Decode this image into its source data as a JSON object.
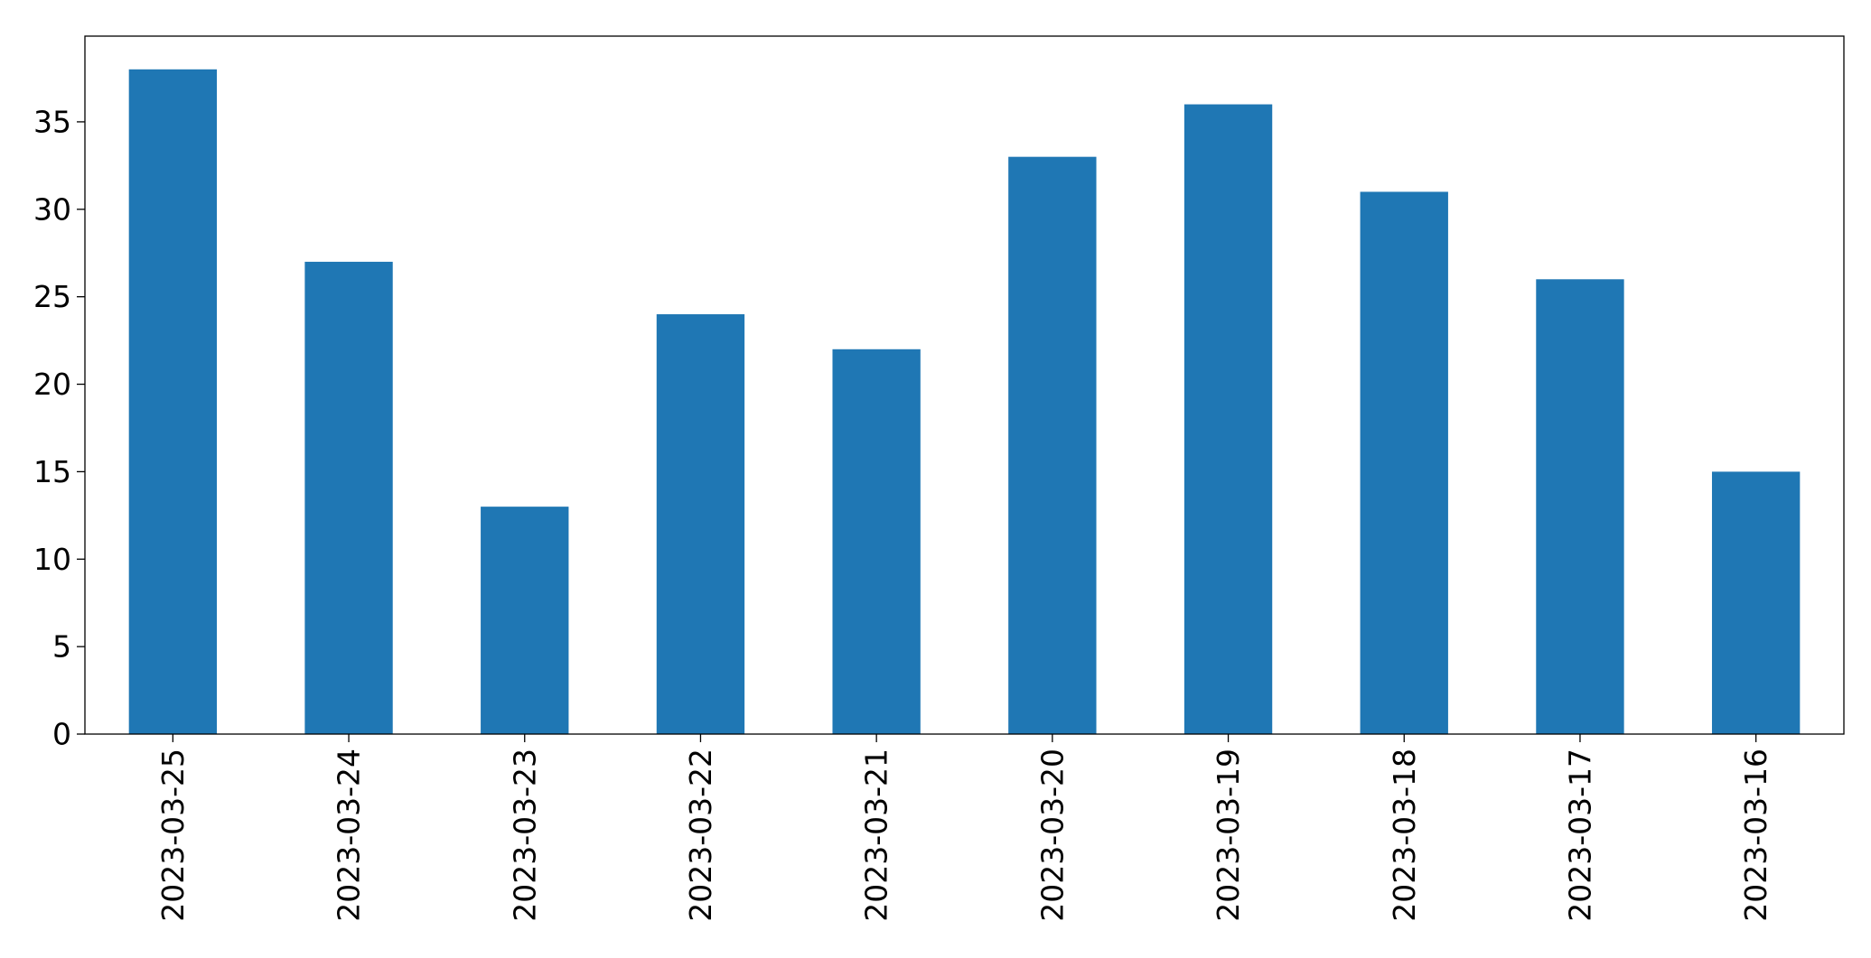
{
  "chart_data": {
    "type": "bar",
    "categories": [
      "2023-03-25",
      "2023-03-24",
      "2023-03-23",
      "2023-03-22",
      "2023-03-21",
      "2023-03-20",
      "2023-03-19",
      "2023-03-18",
      "2023-03-17",
      "2023-03-16"
    ],
    "values": [
      38,
      27,
      13,
      24,
      22,
      33,
      36,
      31,
      26,
      15
    ],
    "title": "",
    "xlabel": "",
    "ylabel": "",
    "ylim": [
      0,
      39.9
    ],
    "yticks": [
      0,
      5,
      10,
      15,
      20,
      25,
      30,
      35
    ],
    "grid": false,
    "legend": "none",
    "bar_color": "#1f77b4"
  }
}
